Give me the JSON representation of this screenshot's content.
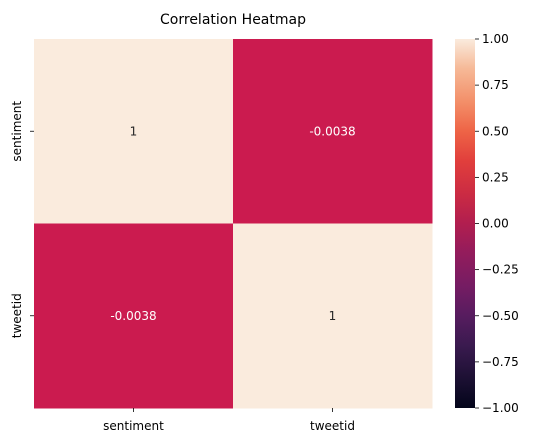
{
  "chart_data": {
    "type": "heatmap",
    "title": "Correlation Heatmap",
    "x_categories": [
      "sentiment",
      "tweetid"
    ],
    "y_categories": [
      "sentiment",
      "tweetid"
    ],
    "values": [
      [
        1,
        -0.0038
      ],
      [
        -0.0038,
        1
      ]
    ],
    "annotations": [
      [
        "1",
        "-0.0038"
      ],
      [
        "-0.0038",
        "1"
      ]
    ],
    "colorbar": {
      "vmin": -1.0,
      "vmax": 1.0,
      "ticks": [
        1.0,
        0.75,
        0.5,
        0.25,
        0.0,
        -0.25,
        -0.5,
        -0.75,
        -1.0
      ],
      "tick_labels": [
        "1.00",
        "0.75",
        "0.50",
        "0.25",
        "0.00",
        "−0.25",
        "−0.50",
        "−0.75",
        "−1.00"
      ],
      "colormap": "rocket",
      "position": "right"
    },
    "colors": {
      "high": "#faebdd",
      "low": "#03051a",
      "mid": "#cb1b4f"
    }
  }
}
